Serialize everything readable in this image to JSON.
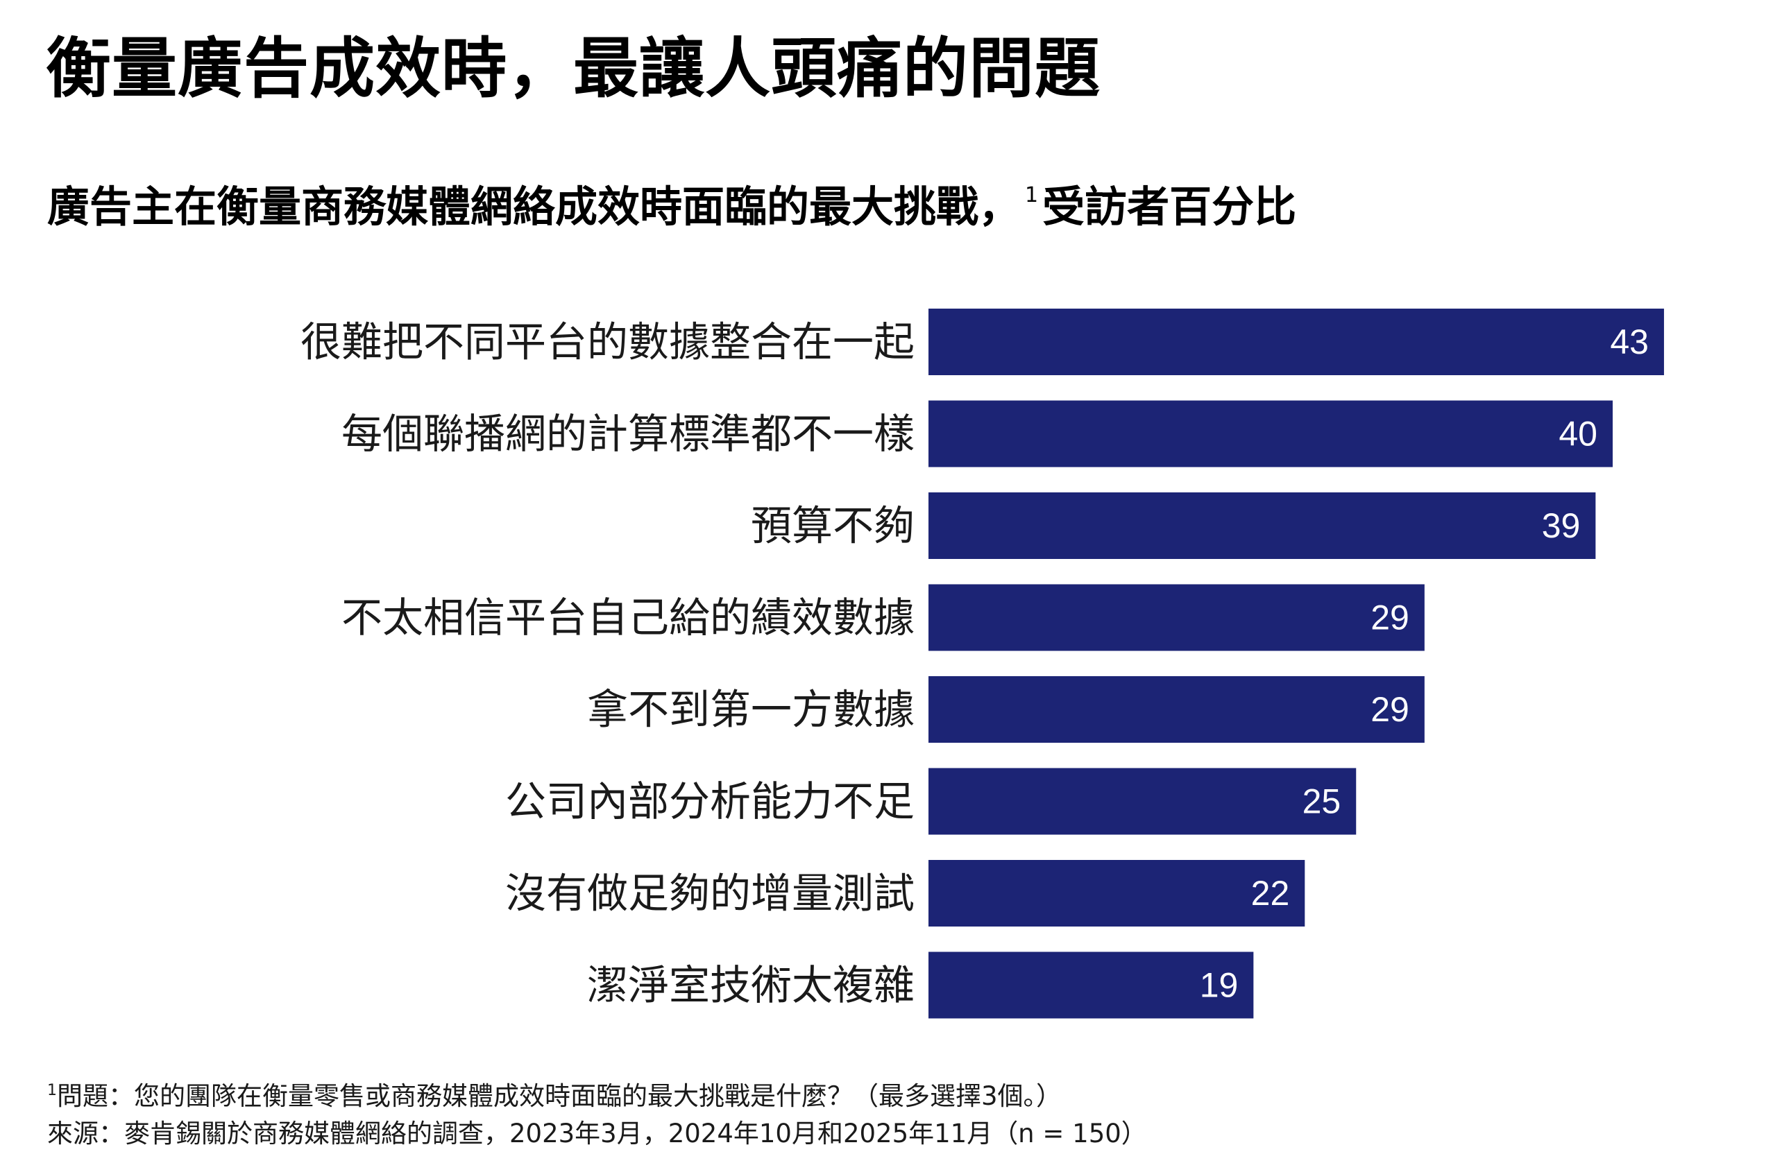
{
  "title": "衡量廣告成效時，最讓人頭痛的問題",
  "subtitle": {
    "text": "廣告主在衡量商務媒體網絡成效時面臨的最大挑戰，",
    "footnote_mark": "1",
    "unit": "受訪者百分比"
  },
  "chart_data": {
    "type": "bar",
    "orientation": "horizontal",
    "categories": [
      "很難把不同平台的數據整合在一起",
      "每個聯播網的計算標準都不一樣",
      "預算不夠",
      "不太相信平台自己給的績效數據",
      "拿不到第一方數據",
      "公司內部分析能力不足",
      "沒有做足夠的增量測試",
      "潔淨室技術太複雜"
    ],
    "values": [
      43,
      40,
      39,
      29,
      29,
      25,
      22,
      19
    ],
    "bar_color": "#1c2475",
    "value_label_color": "#ffffff",
    "xlim": [
      0,
      43
    ]
  },
  "footnotes": {
    "question_mark": "1",
    "question": "問題：您的團隊在衡量零售或商務媒體成效時面臨的最大挑戰是什麼？（最多選擇3個。）",
    "source": "來源：麥肯錫關於商務媒體網絡的調查，2023年3月，2024年10月和2025年11月（n = 150）"
  }
}
